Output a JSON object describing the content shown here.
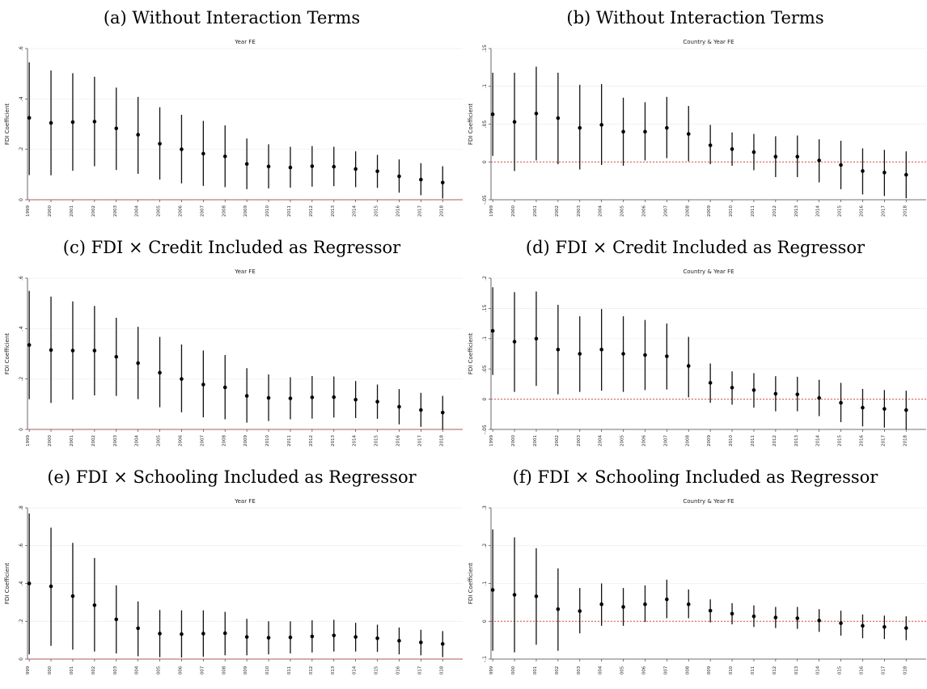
{
  "charts": [
    {
      "caption": "(a) Without Interaction Terms",
      "chart_data": {
        "type": "scatter",
        "title": "Year FE",
        "xlabel": "",
        "ylabel": "FDI Coefficient",
        "ylim": [
          0,
          0.6
        ],
        "y_ticks": [
          0,
          0.2,
          0.4,
          0.6
        ],
        "y_tick_labels": [
          "0",
          ".2",
          ".4",
          ".6"
        ],
        "x_ticks": [
          "1999",
          "2000",
          "2001",
          "2002",
          "2003",
          "2004",
          "2005",
          "2006",
          "2007",
          "2008",
          "2009",
          "2010",
          "2011",
          "2012",
          "2013",
          "2014",
          "2015",
          "2016",
          "2017",
          "2018"
        ],
        "reference_line": 0,
        "points": [
          0.325,
          0.305,
          0.308,
          0.31,
          0.283,
          0.258,
          0.222,
          0.2,
          0.183,
          0.172,
          0.142,
          0.132,
          0.128,
          0.133,
          0.131,
          0.122,
          0.113,
          0.093,
          0.08,
          0.068
        ],
        "ci_low": [
          0.098,
          0.097,
          0.115,
          0.133,
          0.118,
          0.103,
          0.08,
          0.065,
          0.055,
          0.05,
          0.042,
          0.045,
          0.048,
          0.052,
          0.054,
          0.05,
          0.047,
          0.028,
          0.018,
          0.005
        ],
        "ci_high": [
          0.545,
          0.513,
          0.502,
          0.488,
          0.445,
          0.408,
          0.367,
          0.337,
          0.313,
          0.295,
          0.243,
          0.22,
          0.21,
          0.213,
          0.21,
          0.192,
          0.178,
          0.16,
          0.145,
          0.133
        ],
        "grid": true
      }
    },
    {
      "caption": "(b) Without Interaction Terms",
      "chart_data": {
        "type": "scatter",
        "title": "Country & Year FE",
        "xlabel": "",
        "ylabel": "FDI Coefficient",
        "ylim": [
          -0.05,
          0.15
        ],
        "y_ticks": [
          -0.05,
          0,
          0.05,
          0.1,
          0.15
        ],
        "y_tick_labels": [
          "-.05",
          "0",
          ".05",
          ".1",
          ".15"
        ],
        "x_ticks": [
          "1999",
          "2000",
          "2001",
          "2002",
          "2003",
          "2004",
          "2005",
          "2006",
          "2007",
          "2008",
          "2009",
          "2010",
          "2011",
          "2012",
          "2013",
          "2014",
          "2015",
          "2016",
          "2017",
          "2018"
        ],
        "reference_line": 0,
        "points": [
          0.063,
          0.053,
          0.064,
          0.058,
          0.045,
          0.049,
          0.04,
          0.04,
          0.045,
          0.037,
          0.022,
          0.017,
          0.013,
          0.007,
          0.007,
          0.002,
          -0.004,
          -0.012,
          -0.014,
          -0.017
        ],
        "ci_low": [
          0.008,
          -0.012,
          0.002,
          -0.003,
          -0.01,
          -0.004,
          -0.005,
          0.002,
          0.005,
          0.001,
          -0.003,
          -0.005,
          -0.011,
          -0.02,
          -0.02,
          -0.027,
          -0.036,
          -0.043,
          -0.045,
          -0.048
        ],
        "ci_high": [
          0.118,
          0.118,
          0.126,
          0.118,
          0.102,
          0.103,
          0.085,
          0.079,
          0.086,
          0.074,
          0.049,
          0.039,
          0.037,
          0.034,
          0.035,
          0.03,
          0.028,
          0.018,
          0.016,
          0.014
        ],
        "grid": true
      }
    },
    {
      "caption": "(c) FDI × Credit Included as Regressor",
      "chart_data": {
        "type": "scatter",
        "title": "Year FE",
        "xlabel": "",
        "ylabel": "FDI Coefficient",
        "ylim": [
          0,
          0.6
        ],
        "y_ticks": [
          0,
          0.2,
          0.4,
          0.6
        ],
        "y_tick_labels": [
          "0",
          ".2",
          ".4",
          ".6"
        ],
        "x_ticks": [
          "1999",
          "2000",
          "2001",
          "2002",
          "2003",
          "2004",
          "2005",
          "2006",
          "2007",
          "2008",
          "2009",
          "2010",
          "2011",
          "2012",
          "2013",
          "2014",
          "2015",
          "2016",
          "2017",
          "2018"
        ],
        "reference_line": 0,
        "points": [
          0.335,
          0.315,
          0.313,
          0.313,
          0.288,
          0.263,
          0.225,
          0.2,
          0.178,
          0.167,
          0.133,
          0.125,
          0.123,
          0.127,
          0.128,
          0.118,
          0.11,
          0.09,
          0.077,
          0.067
        ],
        "ci_low": [
          0.12,
          0.105,
          0.118,
          0.135,
          0.133,
          0.12,
          0.088,
          0.068,
          0.048,
          0.04,
          0.027,
          0.033,
          0.04,
          0.043,
          0.047,
          0.045,
          0.042,
          0.02,
          0.01,
          0.0
        ],
        "ci_high": [
          0.55,
          0.527,
          0.508,
          0.49,
          0.443,
          0.407,
          0.367,
          0.337,
          0.313,
          0.295,
          0.243,
          0.218,
          0.207,
          0.212,
          0.21,
          0.192,
          0.178,
          0.16,
          0.145,
          0.133
        ],
        "grid": true
      }
    },
    {
      "caption": "(d) FDI × Credit Included as Regressor",
      "chart_data": {
        "type": "scatter",
        "title": "Country & Year FE",
        "xlabel": "",
        "ylabel": "FDI Coefficient",
        "ylim": [
          -0.05,
          0.2
        ],
        "y_ticks": [
          -0.05,
          0,
          0.05,
          0.1,
          0.15,
          0.2
        ],
        "y_tick_labels": [
          "-.05",
          "0",
          ".05",
          ".1",
          ".15",
          ".2"
        ],
        "x_ticks": [
          "1999",
          "2000",
          "2001",
          "2002",
          "2003",
          "2004",
          "2005",
          "2006",
          "2007",
          "2008",
          "2009",
          "2010",
          "2011",
          "2012",
          "2013",
          "2014",
          "2015",
          "2016",
          "2017",
          "2018"
        ],
        "reference_line": 0,
        "points": [
          0.113,
          0.095,
          0.1,
          0.082,
          0.075,
          0.082,
          0.075,
          0.073,
          0.071,
          0.055,
          0.027,
          0.019,
          0.015,
          0.009,
          0.008,
          0.002,
          -0.006,
          -0.014,
          -0.016,
          -0.018
        ],
        "ci_low": [
          0.04,
          0.012,
          0.022,
          0.008,
          0.012,
          0.014,
          0.012,
          0.015,
          0.016,
          0.003,
          -0.006,
          -0.009,
          -0.014,
          -0.02,
          -0.02,
          -0.028,
          -0.038,
          -0.045,
          -0.047,
          -0.05
        ],
        "ci_high": [
          0.185,
          0.177,
          0.178,
          0.156,
          0.137,
          0.149,
          0.137,
          0.131,
          0.125,
          0.103,
          0.059,
          0.046,
          0.043,
          0.038,
          0.037,
          0.032,
          0.027,
          0.017,
          0.015,
          0.014
        ],
        "grid": true
      }
    },
    {
      "caption": "(e) FDI × Schooling Included as Regressor",
      "chart_data": {
        "type": "scatter",
        "title": "Year FE",
        "xlabel": "",
        "ylabel": "FDI Coefficient",
        "ylim": [
          0,
          0.8
        ],
        "y_ticks": [
          0,
          0.2,
          0.4,
          0.6,
          0.8
        ],
        "y_tick_labels": [
          "0",
          ".2",
          ".4",
          ".6",
          ".8"
        ],
        "x_ticks": [
          "999",
          "000",
          "001",
          "002",
          "003",
          "004",
          "005",
          "006",
          "007",
          "008",
          "009",
          "010",
          "011",
          "012",
          "013",
          "014",
          "015",
          "016",
          "017",
          "018"
        ],
        "reference_line": 0,
        "points": [
          0.4,
          0.385,
          0.333,
          0.285,
          0.21,
          0.163,
          0.135,
          0.132,
          0.135,
          0.137,
          0.117,
          0.113,
          0.115,
          0.12,
          0.125,
          0.117,
          0.11,
          0.097,
          0.088,
          0.08
        ],
        "ci_low": [
          0.025,
          0.07,
          0.05,
          0.04,
          0.03,
          0.015,
          0.01,
          0.008,
          0.012,
          0.02,
          0.02,
          0.025,
          0.03,
          0.035,
          0.04,
          0.04,
          0.038,
          0.025,
          0.02,
          0.01
        ],
        "ci_high": [
          0.77,
          0.695,
          0.615,
          0.535,
          0.39,
          0.305,
          0.26,
          0.258,
          0.258,
          0.25,
          0.213,
          0.2,
          0.2,
          0.205,
          0.208,
          0.192,
          0.182,
          0.167,
          0.155,
          0.148
        ],
        "grid": true
      }
    },
    {
      "caption": "(f) FDI × Schooling Included as Regressor",
      "chart_data": {
        "type": "scatter",
        "title": "Country & Year FE",
        "xlabel": "",
        "ylabel": "FDI Coefficient",
        "ylim": [
          -0.1,
          0.3
        ],
        "y_ticks": [
          -0.1,
          0,
          0.1,
          0.2,
          0.3
        ],
        "y_tick_labels": [
          "-.1",
          "0",
          ".1",
          ".2",
          ".3"
        ],
        "x_ticks": [
          "999",
          "000",
          "001",
          "002",
          "003",
          "004",
          "005",
          "006",
          "007",
          "008",
          "009",
          "010",
          "011",
          "012",
          "013",
          "014",
          "015",
          "016",
          "017",
          "018"
        ],
        "reference_line": 0,
        "points": [
          0.083,
          0.07,
          0.066,
          0.032,
          0.027,
          0.045,
          0.038,
          0.045,
          0.058,
          0.045,
          0.028,
          0.02,
          0.013,
          0.01,
          0.008,
          0.002,
          -0.005,
          -0.012,
          -0.015,
          -0.018
        ],
        "ci_low": [
          -0.078,
          -0.082,
          -0.062,
          -0.078,
          -0.032,
          -0.012,
          -0.012,
          -0.002,
          0.008,
          0.008,
          -0.003,
          -0.008,
          -0.015,
          -0.018,
          -0.02,
          -0.028,
          -0.038,
          -0.045,
          -0.047,
          -0.05
        ],
        "ci_high": [
          0.243,
          0.222,
          0.193,
          0.14,
          0.088,
          0.1,
          0.088,
          0.095,
          0.11,
          0.084,
          0.058,
          0.048,
          0.042,
          0.038,
          0.038,
          0.032,
          0.028,
          0.018,
          0.015,
          0.013
        ],
        "grid": true
      }
    }
  ]
}
